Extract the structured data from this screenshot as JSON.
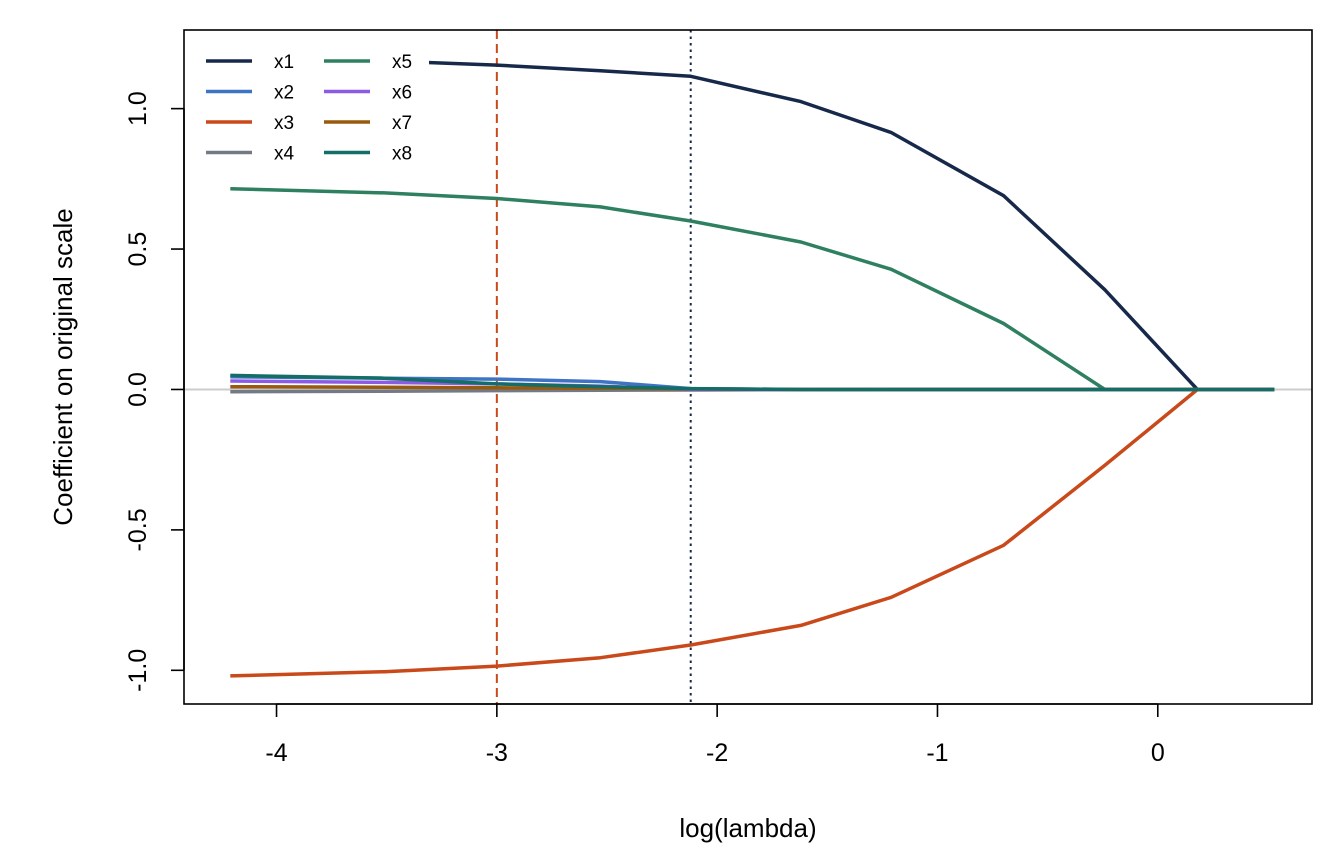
{
  "chart_data": {
    "type": "line",
    "title": "",
    "xlabel": "log(lambda)",
    "ylabel": "Coefficient on original scale",
    "xlim": [
      -4.42,
      0.7
    ],
    "ylim": [
      -1.12,
      1.28
    ],
    "grid": false,
    "legend_position": "top-left",
    "xticks": [
      -4,
      -3,
      -2,
      -1,
      0
    ],
    "xtick_labels": [
      "-4",
      "-3",
      "-2",
      "-1",
      "0"
    ],
    "yticks": [
      -1.0,
      -0.5,
      0.0,
      0.5,
      1.0
    ],
    "ytick_labels": [
      "-1.0",
      "-0.5",
      "0.0",
      "0.5",
      "1.0"
    ],
    "x": [
      -4.21,
      -3.51,
      -3.0,
      -2.53,
      -2.12,
      -1.62,
      -1.21,
      -0.7,
      -0.24,
      0.18,
      0.53
    ],
    "series": [
      {
        "name": "x1",
        "color": "#17294a",
        "values": [
          1.19,
          1.17,
          1.155,
          1.135,
          1.115,
          1.025,
          0.915,
          0.69,
          0.355,
          0.0,
          0.0
        ]
      },
      {
        "name": "x2",
        "color": "#3f74c4",
        "values": [
          0.045,
          0.04,
          0.037,
          0.028,
          0.003,
          0.0,
          0.0,
          0.0,
          0.0,
          0.0,
          0.0
        ]
      },
      {
        "name": "x3",
        "color": "#c9491a",
        "values": [
          -1.02,
          -1.005,
          -0.985,
          -0.955,
          -0.91,
          -0.84,
          -0.74,
          -0.555,
          -0.27,
          0.0,
          0.0
        ]
      },
      {
        "name": "x4",
        "color": "#737a86",
        "values": [
          -0.008,
          -0.006,
          -0.004,
          -0.003,
          -0.002,
          -0.001,
          0.0,
          0.0,
          0.0,
          0.0,
          0.0
        ]
      },
      {
        "name": "x5",
        "color": "#2e8060",
        "values": [
          0.715,
          0.7,
          0.68,
          0.65,
          0.6,
          0.525,
          0.428,
          0.235,
          0.0,
          0.0,
          0.0
        ]
      },
      {
        "name": "x6",
        "color": "#8b5be6",
        "values": [
          0.03,
          0.025,
          0.02,
          0.012,
          0.0,
          0.0,
          0.0,
          0.0,
          0.0,
          0.0,
          0.0
        ]
      },
      {
        "name": "x7",
        "color": "#9a5a0e",
        "values": [
          0.01,
          0.008,
          0.006,
          0.004,
          0.002,
          0.0,
          0.0,
          0.0,
          0.0,
          0.0,
          0.0
        ]
      },
      {
        "name": "x8",
        "color": "#126e66",
        "values": [
          0.05,
          0.04,
          0.02,
          0.01,
          0.003,
          0.0,
          0.0,
          0.0,
          0.0,
          0.0,
          0.0
        ]
      }
    ],
    "reference_lines": [
      {
        "axis": "x",
        "value": -3.0,
        "style": "dashed",
        "color": "#c9491a"
      },
      {
        "axis": "x",
        "value": -2.12,
        "style": "dotted",
        "color": "#17294a"
      },
      {
        "axis": "y",
        "value": 0.0,
        "style": "solid",
        "color": "#cccccc"
      }
    ]
  }
}
